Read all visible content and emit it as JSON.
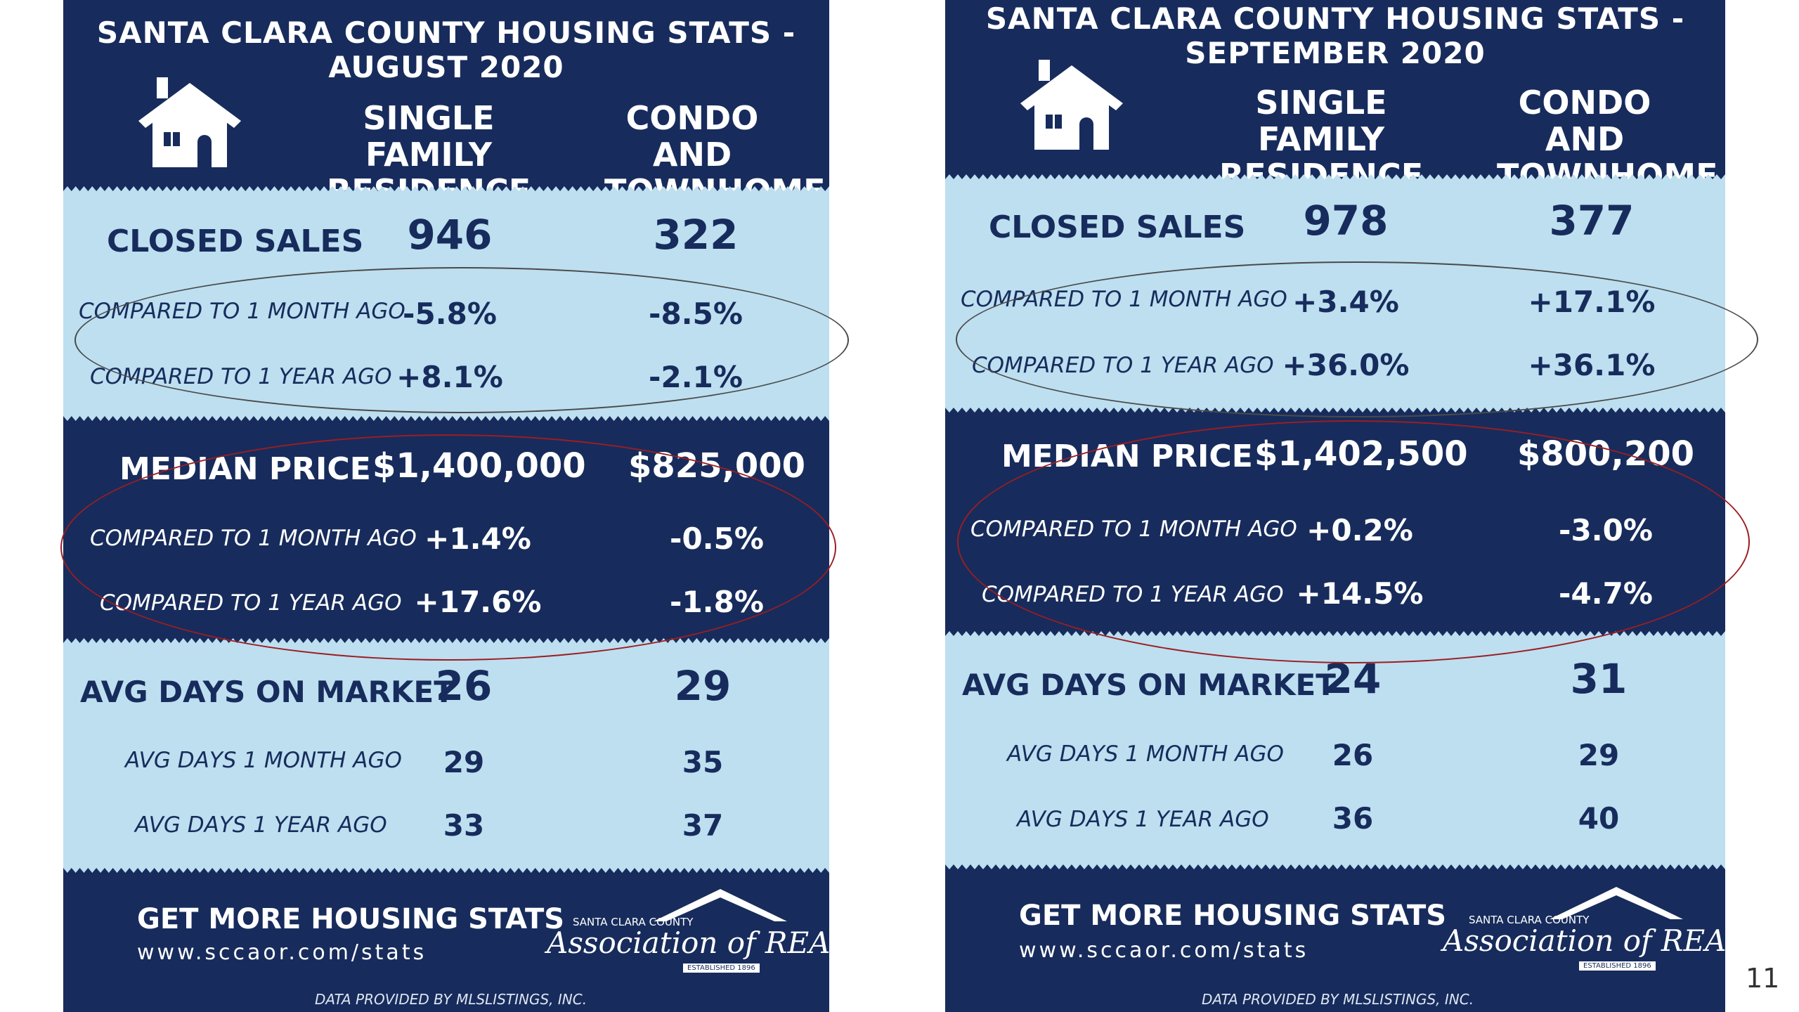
{
  "colors": {
    "navy": "#172c5c",
    "light_band": "#bddff0",
    "white": "#ffffff",
    "oval_gray": "#4a4a4a",
    "oval_red": "#9c1d22"
  },
  "icons": [
    "house-icon",
    "realtors-roof-logo"
  ],
  "cards": [
    {
      "title": "SANTA CLARA COUNTY HOUSING STATS - AUGUST 2020",
      "col1": [
        "SINGLE FAMILY",
        "RESIDENCE"
      ],
      "col2": [
        "CONDO AND",
        "TOWNHOME"
      ],
      "closed_sales": {
        "label": "CLOSED SALES",
        "sfr": "946",
        "condo": "322",
        "month_label": "COMPARED TO 1 MONTH AGO",
        "month_sfr": "-5.8%",
        "month_condo": "-8.5%",
        "year_label": "COMPARED TO 1 YEAR AGO",
        "year_sfr": "+8.1%",
        "year_condo": "-2.1%"
      },
      "median_price": {
        "label": "MEDIAN PRICE",
        "sfr": "$1,400,000",
        "condo": "$825,000",
        "month_label": "COMPARED TO 1 MONTH AGO",
        "month_sfr": "+1.4%",
        "month_condo": "-0.5%",
        "year_label": "COMPARED TO 1 YEAR AGO",
        "year_sfr": "+17.6%",
        "year_condo": "-1.8%"
      },
      "days_on_market": {
        "label": "AVG DAYS ON MARKET",
        "sfr": "26",
        "condo": "29",
        "month_label": "AVG DAYS 1 MONTH AGO",
        "month_sfr": "29",
        "month_condo": "35",
        "year_label": "AVG DAYS 1 YEAR AGO",
        "year_sfr": "33",
        "year_condo": "37"
      },
      "footer": {
        "heading": "GET MORE HOUSING STATS",
        "url": "www.sccaor.com/stats",
        "note": "DATA PROVIDED BY MLSLISTINGS, INC.",
        "logo_top": "SANTA CLARA COUNTY",
        "logo_main": "Association of REALTORS",
        "logo_est": "ESTABLISHED 1896"
      }
    },
    {
      "title": "SANTA CLARA COUNTY HOUSING STATS - SEPTEMBER 2020",
      "col1": [
        "SINGLE FAMILY",
        "RESIDENCE"
      ],
      "col2": [
        "CONDO AND",
        "TOWNHOME"
      ],
      "closed_sales": {
        "label": "CLOSED SALES",
        "sfr": "978",
        "condo": "377",
        "month_label": "COMPARED TO 1 MONTH AGO",
        "month_sfr": "+3.4%",
        "month_condo": "+17.1%",
        "year_label": "COMPARED TO 1 YEAR AGO",
        "year_sfr": "+36.0%",
        "year_condo": "+36.1%"
      },
      "median_price": {
        "label": "MEDIAN PRICE",
        "sfr": "$1,402,500",
        "condo": "$800,200",
        "month_label": "COMPARED TO 1 MONTH AGO",
        "month_sfr": "+0.2%",
        "month_condo": "-3.0%",
        "year_label": "COMPARED TO 1 YEAR AGO",
        "year_sfr": "+14.5%",
        "year_condo": "-4.7%"
      },
      "days_on_market": {
        "label": "AVG DAYS ON MARKET",
        "sfr": "24",
        "condo": "31",
        "month_label": "AVG DAYS 1 MONTH AGO",
        "month_sfr": "26",
        "month_condo": "29",
        "year_label": "AVG DAYS 1 YEAR AGO",
        "year_sfr": "36",
        "year_condo": "40"
      },
      "footer": {
        "heading": "GET MORE HOUSING STATS",
        "url": "www.sccaor.com/stats",
        "note": "DATA PROVIDED BY MLSLISTINGS, INC.",
        "logo_top": "SANTA CLARA COUNTY",
        "logo_main": "Association of REALTORS",
        "logo_est": "ESTABLISHED 1896"
      }
    }
  ],
  "page_number": "11"
}
